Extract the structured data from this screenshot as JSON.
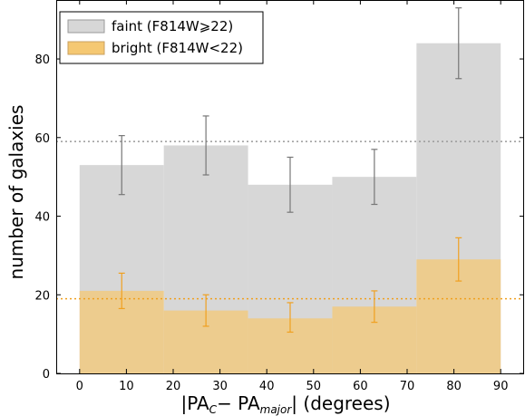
{
  "chart_data": {
    "type": "bar",
    "x_edges": [
      0,
      18,
      36,
      54,
      72,
      90
    ],
    "bin_centers": [
      9,
      27,
      45,
      63,
      81
    ],
    "series": [
      {
        "name": "faint (F814W⩾22)",
        "values": [
          53,
          58,
          48,
          50,
          84
        ],
        "err_low": [
          45.5,
          50.5,
          41,
          43,
          75
        ],
        "err_high": [
          60.5,
          65.5,
          55,
          57,
          93
        ],
        "mean": 59,
        "color": "#d7d7d7",
        "error_color": "#777777",
        "mean_line_color": "#9a9a9a"
      },
      {
        "name": "bright (F814W<22)",
        "values": [
          21,
          16,
          14,
          17,
          29
        ],
        "err_low": [
          16.5,
          12,
          10.5,
          13,
          23.5
        ],
        "err_high": [
          25.5,
          20,
          18,
          21,
          34.5
        ],
        "mean": 19,
        "color": "#f5c872",
        "error_color": "#f0a020",
        "mean_line_color": "#f0a020"
      }
    ],
    "xlim": [
      -5,
      95
    ],
    "ylim": [
      0,
      95
    ],
    "xticks": [
      0,
      10,
      20,
      30,
      40,
      50,
      60,
      70,
      80,
      90
    ],
    "yticks": [
      0,
      20,
      40,
      60,
      80
    ],
    "xlabel": "|PA_C − PA_major|  (degrees)",
    "xlabel_parts": {
      "main": "|PA",
      "sub1": "C",
      "minus": "− PA",
      "sub2": "major",
      "end": "|  (degrees)"
    },
    "ylabel": "number of galaxies",
    "grid": false,
    "legend_position": "top-left"
  }
}
